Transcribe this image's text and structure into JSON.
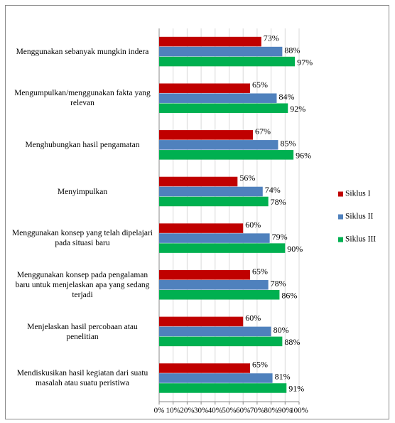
{
  "chart_data": {
    "type": "hbar",
    "categories": [
      "Menggunakan sebanyak mungkin indera",
      "Mengumpulkan/menggunakan fakta yang relevan",
      "Menghubungkan hasil pengamatan",
      "Menyimpulkan",
      "Menggunakan konsep yang telah dipelajari pada situasi baru",
      "Menggunakan konsep pada pengalaman baru untuk menjelaskan apa yang sedang terjadi",
      "Menjelaskan hasil percobaan atau penelitian",
      "Mendiskusikan hasil kegiatan dari suatu masalah atau suatu peristiwa"
    ],
    "series": [
      {
        "name": "Siklus I",
        "color": "#c00000",
        "values": [
          73,
          65,
          67,
          56,
          60,
          65,
          60,
          65
        ],
        "value_labels": [
          "73%",
          "65%",
          "67%",
          "56%",
          "60%",
          "65%",
          "60%",
          "65%"
        ]
      },
      {
        "name": "Siklus II",
        "color": "#4f81bd",
        "values": [
          88,
          84,
          85,
          74,
          79,
          78,
          80,
          81
        ],
        "value_labels": [
          "88%",
          "84%",
          "85%",
          "74%",
          "79%",
          "78%",
          "80%",
          "81%"
        ]
      },
      {
        "name": "Siklus III",
        "color": "#00b050",
        "values": [
          97,
          92,
          96,
          78,
          90,
          86,
          88,
          91
        ],
        "value_labels": [
          "97%",
          "92%",
          "96%",
          "78%",
          "90%",
          "86%",
          "88%",
          "91%"
        ]
      }
    ],
    "xlim": [
      0,
      100
    ],
    "xticks": [
      {
        "value": 0,
        "label": "0%"
      },
      {
        "value": 10,
        "label": "10%"
      },
      {
        "value": 20,
        "label": "20%"
      },
      {
        "value": 30,
        "label": "30%"
      },
      {
        "value": 40,
        "label": "40%"
      },
      {
        "value": 50,
        "label": "50%"
      },
      {
        "value": 60,
        "label": "60%"
      },
      {
        "value": 70,
        "label": "70%"
      },
      {
        "value": 80,
        "label": "80%"
      },
      {
        "value": 90,
        "label": "90%"
      },
      {
        "value": 100,
        "label": "100%"
      }
    ],
    "grid": true,
    "legend": "right"
  }
}
